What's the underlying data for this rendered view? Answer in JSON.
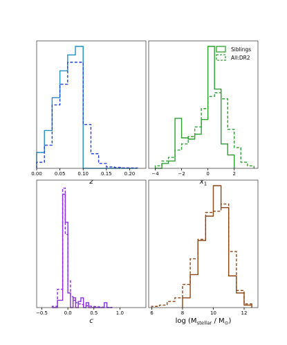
{
  "legend": {
    "placement": "top-right of top-right panel",
    "entries": [
      "Siblings",
      "All:DR2"
    ]
  },
  "chart_data": [
    {
      "type": "histogram",
      "xlabel": "z",
      "xlim": [
        0.0,
        0.235
      ],
      "ylim": [
        0,
        1.0
      ],
      "xticks": [
        0.0,
        0.05,
        0.1,
        0.15,
        0.2
      ],
      "xtick_labels": [
        "0.00",
        "0.05",
        "0.10",
        "0.15",
        "0.20"
      ],
      "grid": false,
      "series": [
        {
          "name": "Siblings",
          "style": "solid",
          "color": "#1f8fc4",
          "edges": [
            0.0,
            0.0167,
            0.0333,
            0.05,
            0.0667,
            0.0833,
            0.1,
            0.1167,
            0.1333,
            0.15,
            0.1667,
            0.1833,
            0.2,
            0.2167
          ],
          "values": [
            0.13,
            0.31,
            0.58,
            0.8,
            0.93,
            1.0,
            0.0,
            0.0,
            0.0,
            0.0,
            0.0,
            0.0,
            0.0
          ]
        },
        {
          "name": "All:DR2",
          "style": "dashed",
          "color": "#1f3fd4",
          "edges": [
            0.0,
            0.0167,
            0.0333,
            0.05,
            0.0667,
            0.0833,
            0.1,
            0.1167,
            0.1333,
            0.15,
            0.1667,
            0.1833,
            0.2,
            0.2167
          ],
          "values": [
            0.05,
            0.19,
            0.52,
            0.69,
            0.87,
            0.87,
            0.36,
            0.12,
            0.04,
            0.012,
            0.008,
            0.004,
            0.003
          ]
        }
      ]
    },
    {
      "type": "histogram",
      "xlabel": "x₁",
      "xlim": [
        -4.5,
        3.8
      ],
      "ylim": [
        0,
        1.0
      ],
      "xticks": [
        -4,
        -2,
        0,
        2
      ],
      "xtick_labels": [
        "−4",
        "−2",
        "0",
        "2"
      ],
      "grid": false,
      "series": [
        {
          "name": "Siblings",
          "style": "solid",
          "color": "#2ca02c",
          "edges": [
            -4.0,
            -3.5,
            -3.0,
            -2.5,
            -2.0,
            -1.5,
            -1.0,
            -0.5,
            0.0,
            0.5,
            1.0,
            1.5,
            2.0
          ],
          "values": [
            0.0,
            0.04,
            0.06,
            0.41,
            0.25,
            0.24,
            0.28,
            0.4,
            1.0,
            0.65,
            0.2,
            0.11
          ]
        },
        {
          "name": "All:DR2",
          "style": "dashed",
          "color": "#2ca02c",
          "edges": [
            -4.0,
            -3.5,
            -3.0,
            -2.5,
            -2.0,
            -1.5,
            -1.0,
            -0.5,
            0.0,
            0.5,
            1.0,
            1.5,
            2.0,
            2.5,
            3.0,
            3.5
          ],
          "values": [
            0.02,
            0.06,
            0.09,
            0.15,
            0.2,
            0.26,
            0.34,
            0.49,
            0.59,
            0.62,
            0.57,
            0.32,
            0.17,
            0.05,
            0.02
          ]
        }
      ]
    },
    {
      "type": "histogram",
      "xlabel": "c",
      "xlim": [
        -0.6,
        1.5
      ],
      "ylim": [
        0,
        1.0
      ],
      "xticks": [
        -0.5,
        0.0,
        0.5,
        1.0
      ],
      "xtick_labels": [
        "−0.5",
        "0.0",
        "0.5",
        "1.0"
      ],
      "grid": false,
      "series": [
        {
          "name": "Siblings",
          "style": "solid",
          "color": "#8a2be2",
          "edges": [
            -0.3,
            -0.2,
            -0.1,
            -0.05,
            0.0,
            0.05,
            0.1,
            0.15,
            0.2,
            0.25,
            0.3,
            0.35,
            0.4,
            0.45,
            0.5,
            0.55,
            0.6,
            0.65,
            0.7,
            0.75,
            0.8,
            0.85
          ],
          "values": [
            0.0,
            0.06,
            0.93,
            0.7,
            0.12,
            0.0,
            0.08,
            0.0,
            0.05,
            0.08,
            0.0,
            0.04,
            0.0,
            0.0,
            0.0,
            0.0,
            0.0,
            0.0,
            0.04,
            0.0,
            0.0
          ]
        },
        {
          "name": "All:DR2",
          "style": "dashed",
          "color": "#8a2be2",
          "edges": [
            -0.3,
            -0.2,
            -0.1,
            -0.05,
            0.0,
            0.05,
            0.1,
            0.15,
            0.2,
            0.25,
            0.3,
            0.35,
            0.4,
            0.45,
            0.5,
            0.55,
            0.6,
            0.65,
            0.7,
            0.75,
            0.8,
            0.85
          ],
          "values": [
            0.01,
            0.15,
            0.98,
            0.6,
            0.22,
            0.09,
            0.06,
            0.04,
            0.03,
            0.025,
            0.02,
            0.015,
            0.012,
            0.01,
            0.008,
            0.006,
            0.005,
            0.004,
            0.003,
            0.002,
            0.002
          ]
        }
      ]
    },
    {
      "type": "histogram",
      "xlabel": "log (M_stellar / M_⊙)",
      "xlim": [
        5.8,
        12.9
      ],
      "ylim": [
        0,
        1.0
      ],
      "xticks": [
        6,
        8,
        10,
        12
      ],
      "xtick_labels": [
        "6",
        "8",
        "10",
        "12"
      ],
      "grid": false,
      "series": [
        {
          "name": "Siblings",
          "style": "solid",
          "color": "#8b4513",
          "edges": [
            8.0,
            8.5,
            9.0,
            9.5,
            10.0,
            10.5,
            11.0,
            11.5,
            12.0,
            12.5
          ],
          "values": [
            0.08,
            0.27,
            0.55,
            0.75,
            1.0,
            0.82,
            0.26,
            0.12,
            0.02
          ]
        },
        {
          "name": "All:DR2",
          "style": "dashed",
          "color": "#8b4513",
          "edges": [
            6.0,
            6.5,
            7.0,
            7.5,
            8.0,
            8.5,
            9.0,
            9.5,
            10.0,
            10.5,
            11.0,
            11.5,
            12.0,
            12.5
          ],
          "values": [
            0.01,
            0.02,
            0.05,
            0.08,
            0.19,
            0.4,
            0.56,
            0.78,
            0.79,
            0.85,
            0.46,
            0.14,
            0.03
          ]
        }
      ]
    }
  ]
}
